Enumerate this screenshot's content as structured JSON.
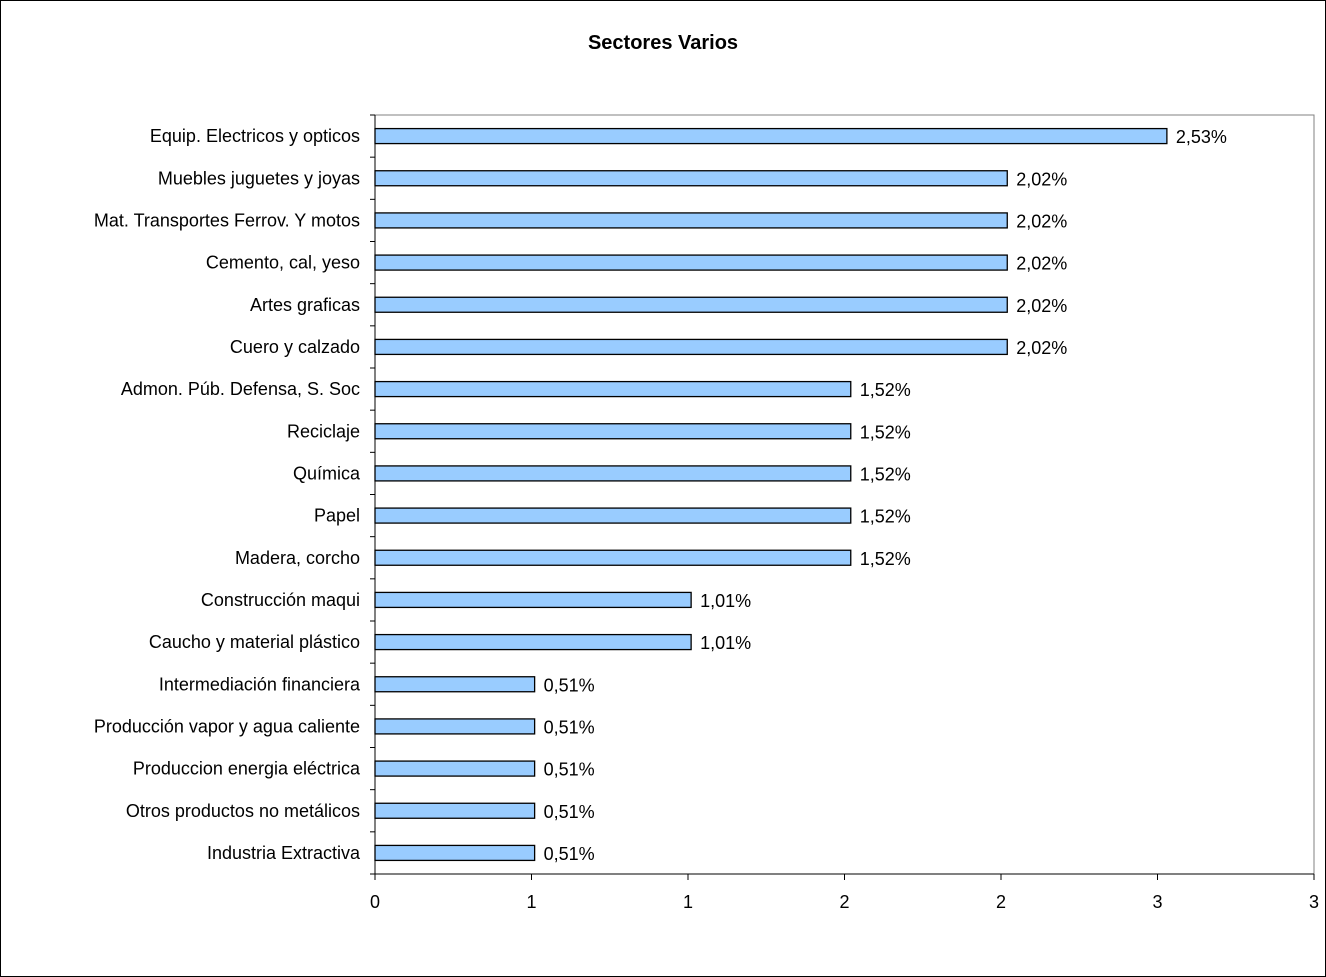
{
  "chart_data": {
    "type": "bar",
    "orientation": "horizontal",
    "title": "Sectores Varios",
    "xlabel": "",
    "ylabel": "",
    "categories": [
      "Equip. Electricos y opticos",
      "Muebles juguetes y joyas",
      "Mat. Transportes Ferrov. Y motos",
      "Cemento, cal, yeso",
      "Artes graficas",
      "Cuero y calzado",
      "Admon. Púb. Defensa, S. Soc",
      "Reciclaje",
      "Química",
      "Papel",
      "Madera, corcho",
      "Construcción maqui",
      "Caucho y material plástico",
      "Intermediación financiera",
      "Producción vapor y agua caliente",
      "Produccion energia eléctrica",
      "Otros productos no metálicos",
      "Industria Extractiva"
    ],
    "values": [
      2.53,
      2.02,
      2.02,
      2.02,
      2.02,
      2.02,
      1.52,
      1.52,
      1.52,
      1.52,
      1.52,
      1.01,
      1.01,
      0.51,
      0.51,
      0.51,
      0.51,
      0.51
    ],
    "data_labels": [
      "2,53%",
      "2,02%",
      "2,02%",
      "2,02%",
      "2,02%",
      "2,02%",
      "1,52%",
      "1,52%",
      "1,52%",
      "1,52%",
      "1,52%",
      "1,01%",
      "1,01%",
      "0,51%",
      "0,51%",
      "0,51%",
      "0,51%",
      "0,51%"
    ],
    "xlim": [
      0,
      3
    ],
    "x_tick_labels": [
      "0",
      "1",
      "1",
      "2",
      "2",
      "3",
      "3"
    ],
    "grid": false,
    "legend": "none",
    "colors": {
      "bar_fill": "#99ccff",
      "bar_stroke": "#000000",
      "plot_border": "#808080",
      "axis": "#000000"
    }
  }
}
